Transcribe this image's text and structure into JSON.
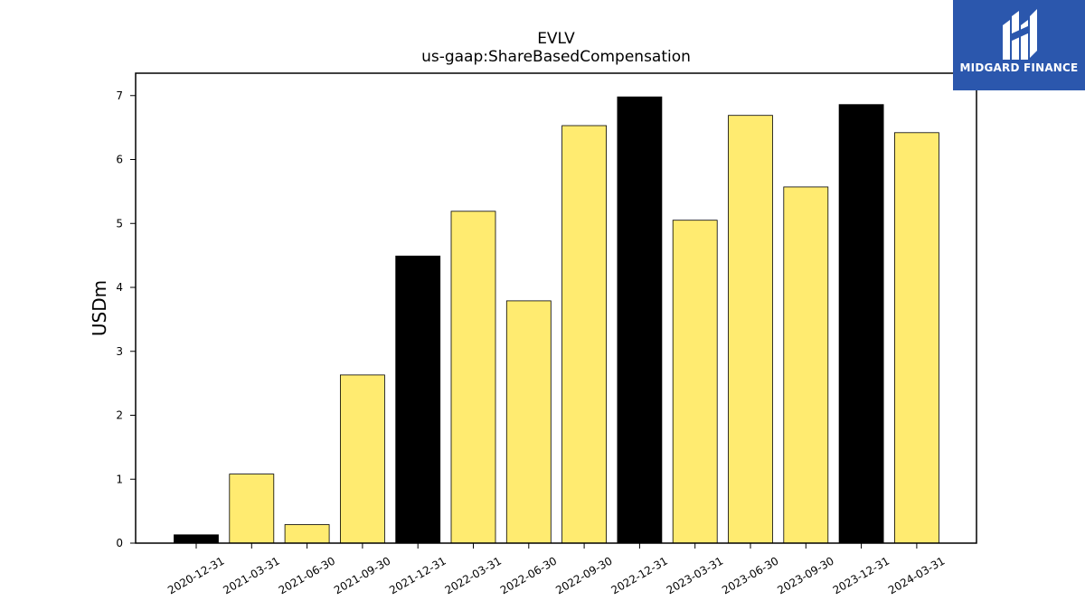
{
  "chart_data": {
    "type": "bar",
    "title": "EVLV",
    "subtitle": "us-gaap:ShareBasedCompensation",
    "xlabel": "",
    "ylabel": "USDm",
    "ylim": [
      0,
      7.35
    ],
    "yticks": [
      0,
      1,
      2,
      3,
      4,
      5,
      6,
      7
    ],
    "grid": false,
    "categories": [
      "2020-12-31",
      "2021-03-31",
      "2021-06-30",
      "2021-09-30",
      "2021-12-31",
      "2022-03-31",
      "2022-06-30",
      "2022-09-30",
      "2022-12-31",
      "2023-03-31",
      "2023-06-30",
      "2023-09-30",
      "2023-12-31",
      "2024-03-31"
    ],
    "values": [
      0.13,
      1.08,
      0.29,
      2.63,
      4.49,
      5.19,
      3.79,
      6.53,
      6.98,
      5.05,
      6.69,
      5.57,
      6.86,
      6.42
    ],
    "bar_colors": [
      "#000000",
      "#ffeb70",
      "#ffeb70",
      "#ffeb70",
      "#000000",
      "#ffeb70",
      "#ffeb70",
      "#ffeb70",
      "#000000",
      "#ffeb70",
      "#ffeb70",
      "#ffeb70",
      "#000000",
      "#ffeb70"
    ]
  },
  "logo": {
    "text": "MIDGARD FINANCE",
    "background": "#2b57ad",
    "icon": "midgard-monogram-icon"
  }
}
